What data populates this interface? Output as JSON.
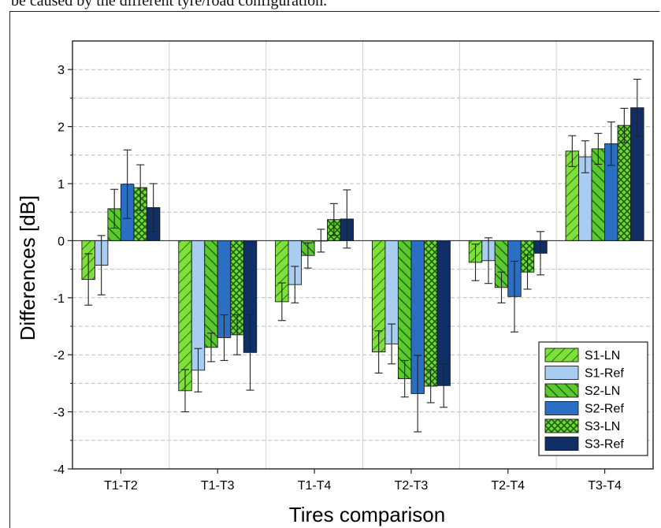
{
  "caption_fragment": "be caused by the different tyre/road configuration.",
  "chart_data": {
    "type": "bar",
    "title": "",
    "xlabel": "Tires comparison",
    "ylabel": "Differences   [dB]",
    "ylim": [
      -4,
      3.5
    ],
    "yticks": [
      -4,
      -3,
      -2,
      -1,
      0,
      1,
      2,
      3
    ],
    "grid": true,
    "legend_position": "bottom-right",
    "categories": [
      "T1-T2",
      "T1-T3",
      "T1-T4",
      "T2-T3",
      "T2-T4",
      "T3-T4"
    ],
    "series": [
      {
        "name": "S1-LN",
        "color": "#7fe03a",
        "pattern": "hatch-diag",
        "values": [
          -0.68,
          -2.63,
          -1.07,
          -1.95,
          -0.38,
          1.57
        ],
        "errors": [
          0.45,
          0.37,
          0.33,
          0.37,
          0.32,
          0.27
        ]
      },
      {
        "name": "S1-Ref",
        "color": "#a9cdf0",
        "pattern": "solid",
        "values": [
          -0.43,
          -2.27,
          -0.77,
          -1.81,
          -0.35,
          1.47
        ],
        "errors": [
          0.52,
          0.38,
          0.32,
          0.35,
          0.4,
          0.28
        ]
      },
      {
        "name": "S2-LN",
        "color": "#5cc92e",
        "pattern": "hatch-diag-rev",
        "values": [
          0.56,
          -1.87,
          -0.26,
          -2.42,
          -0.82,
          1.61
        ],
        "errors": [
          0.34,
          0.25,
          0.22,
          0.32,
          0.27,
          0.27
        ]
      },
      {
        "name": "S2-Ref",
        "color": "#2a6fc4",
        "pattern": "solid",
        "values": [
          0.99,
          -1.7,
          0.0,
          -2.68,
          -0.98,
          1.7
        ],
        "errors": [
          0.6,
          0.4,
          0.2,
          0.67,
          0.62,
          0.38
        ]
      },
      {
        "name": "S3-LN",
        "color": "#6fd936",
        "pattern": "crosshatch",
        "values": [
          0.93,
          -1.65,
          0.37,
          -2.55,
          -0.55,
          2.02
        ],
        "errors": [
          0.4,
          0.35,
          0.28,
          0.29,
          0.3,
          0.3
        ]
      },
      {
        "name": "S3-Ref",
        "color": "#0f2f66",
        "pattern": "solid",
        "values": [
          0.58,
          -1.96,
          0.38,
          -2.54,
          -0.22,
          2.33
        ],
        "errors": [
          0.42,
          0.66,
          0.51,
          0.38,
          0.38,
          0.5
        ]
      }
    ]
  }
}
